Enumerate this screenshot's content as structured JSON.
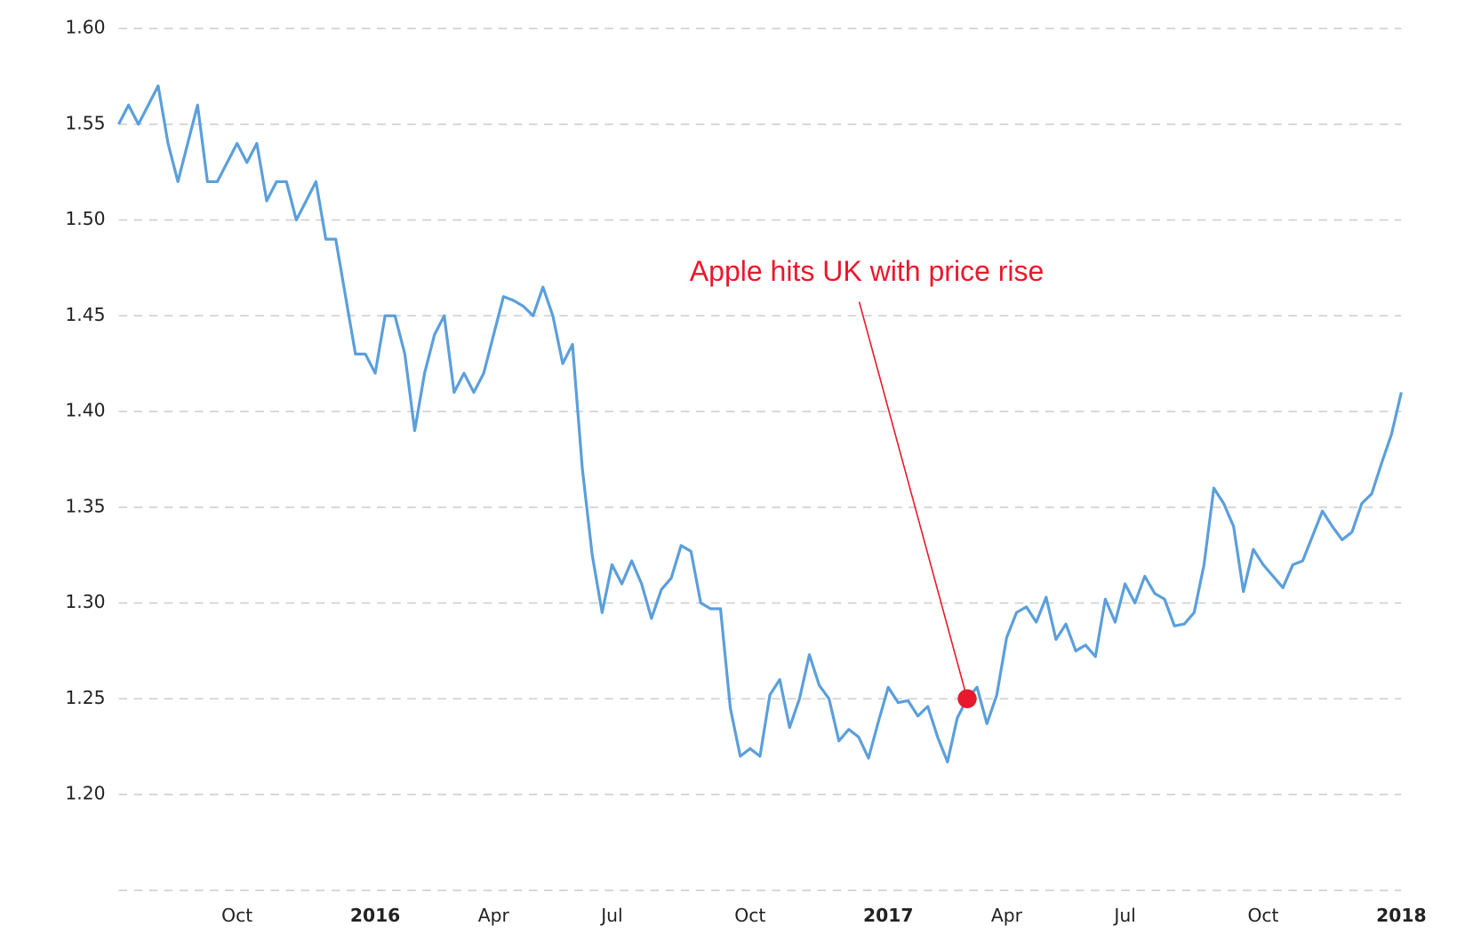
{
  "chart_data": {
    "type": "line",
    "annotation": "Apple hits UK with price rise",
    "categories": [
      null,
      null,
      null,
      null,
      null,
      null,
      null,
      null,
      null,
      null,
      null,
      null,
      "Oct",
      null,
      null,
      null,
      null,
      null,
      null,
      null,
      null,
      null,
      null,
      null,
      null,
      null,
      "2016",
      null,
      null,
      null,
      null,
      null,
      null,
      null,
      null,
      null,
      null,
      null,
      "Apr",
      null,
      null,
      null,
      null,
      null,
      null,
      null,
      null,
      null,
      null,
      null,
      "Jul",
      null,
      null,
      null,
      null,
      null,
      null,
      null,
      null,
      null,
      null,
      null,
      null,
      null,
      "Oct",
      null,
      null,
      null,
      null,
      null,
      null,
      null,
      null,
      null,
      null,
      null,
      null,
      null,
      "2017",
      null,
      null,
      null,
      null,
      null,
      null,
      null,
      null,
      null,
      null,
      null,
      "Apr",
      null,
      null,
      null,
      null,
      null,
      null,
      null,
      null,
      null,
      null,
      null,
      "Jul",
      null,
      null,
      null,
      null,
      null,
      null,
      null,
      null,
      null,
      null,
      null,
      null,
      null,
      "Oct",
      null,
      null,
      null,
      null,
      null,
      null,
      null,
      null,
      null,
      null,
      null,
      null,
      null,
      "2018"
    ],
    "series": [
      {
        "color": "#5b9fdb",
        "values": [
          1.55,
          1.56,
          1.55,
          1.56,
          1.57,
          1.54,
          1.52,
          1.54,
          1.56,
          1.52,
          1.52,
          1.53,
          1.54,
          1.53,
          1.54,
          1.51,
          1.52,
          1.52,
          1.5,
          1.51,
          1.52,
          1.49,
          1.49,
          1.46,
          1.43,
          1.43,
          1.42,
          1.45,
          1.45,
          1.43,
          1.39,
          1.42,
          1.44,
          1.45,
          1.41,
          1.42,
          1.41,
          1.42,
          1.44,
          1.46,
          1.458,
          1.455,
          1.45,
          1.465,
          1.45,
          1.425,
          1.435,
          1.37,
          1.325,
          1.295,
          1.32,
          1.31,
          1.322,
          1.31,
          1.292,
          1.307,
          1.313,
          1.33,
          1.327,
          1.3,
          1.297,
          1.297,
          1.245,
          1.22,
          1.224,
          1.22,
          1.252,
          1.26,
          1.235,
          1.25,
          1.273,
          1.257,
          1.25,
          1.228,
          1.234,
          1.23,
          1.219,
          1.238,
          1.256,
          1.248,
          1.249,
          1.241,
          1.246,
          1.23,
          1.217,
          1.24,
          1.25,
          1.256,
          1.237,
          1.252,
          1.282,
          1.295,
          1.298,
          1.29,
          1.303,
          1.281,
          1.289,
          1.275,
          1.278,
          1.272,
          1.302,
          1.29,
          1.31,
          1.3,
          1.314,
          1.305,
          1.302,
          1.288,
          1.289,
          1.295,
          1.32,
          1.36,
          1.352,
          1.34,
          1.306,
          1.328,
          1.32,
          1.314,
          1.308,
          1.32,
          1.322,
          1.335,
          1.348,
          1.34,
          1.333,
          1.337,
          1.352,
          1.357,
          1.373,
          1.388,
          1.41
        ]
      }
    ],
    "annotation_color": "#e8192c",
    "ylim": [
      1.15,
      1.6
    ],
    "yticks": [
      {
        "value": 1.2,
        "label": "1.20"
      },
      1.25,
      {
        "value": 1.3,
        "label": "1.30"
      },
      1.35,
      {
        "value": 1.4,
        "label": "1.40"
      },
      1.45,
      {
        "value": 1.5,
        "label": "1.50"
      },
      1.55,
      {
        "value": 1.6,
        "label": "1.60"
      }
    ],
    "grid": true
  }
}
